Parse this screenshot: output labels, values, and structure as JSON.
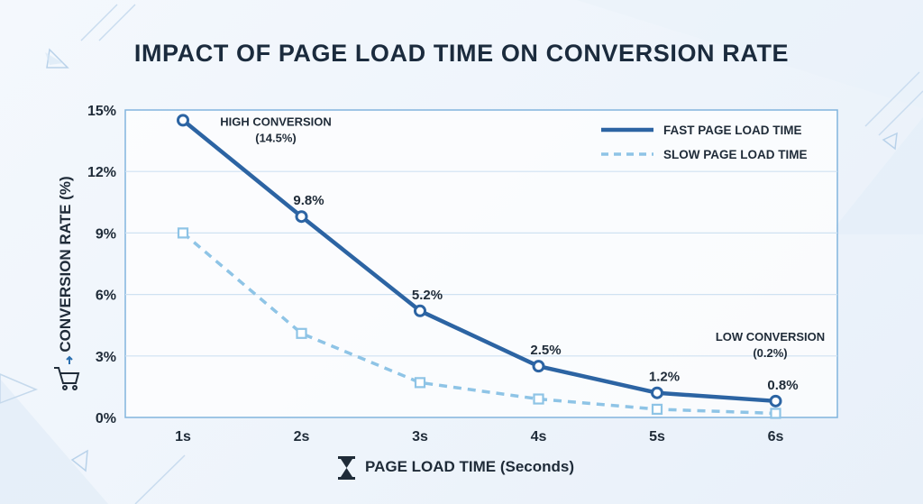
{
  "chart_data": {
    "type": "line",
    "title": "IMPACT OF PAGE LOAD TIME ON CONVERSION RATE",
    "xlabel": "PAGE LOAD TIME (Seconds)",
    "ylabel": "CONVERSION RATE (%)",
    "categories": [
      "1s",
      "2s",
      "3s",
      "4s",
      "5s",
      "6s"
    ],
    "yticks": [
      "0%",
      "3%",
      "6%",
      "9%",
      "12%",
      "15%"
    ],
    "ylim": [
      0,
      15
    ],
    "grid": true,
    "legend_position": "top-right",
    "series": [
      {
        "name": "FAST PAGE LOAD TIME",
        "style": "solid",
        "marker": "circle",
        "color": "#2c64a3",
        "values": [
          14.5,
          9.8,
          5.2,
          2.5,
          1.2,
          0.8
        ],
        "labels": [
          "",
          "9.8%",
          "5.2%",
          "2.5%",
          "1.2%",
          "0.8%"
        ]
      },
      {
        "name": "SLOW PAGE LOAD TIME",
        "style": "dashed",
        "marker": "square",
        "color": "#8ec4e6",
        "values": [
          9.0,
          4.1,
          1.7,
          0.9,
          0.4,
          0.2
        ],
        "labels": []
      }
    ],
    "annotations": [
      {
        "lines": [
          "HIGH CONVERSION",
          "(14.5%)"
        ],
        "target": "1s"
      },
      {
        "lines": [
          "LOW CONVERSION",
          "(0.2%)"
        ],
        "target": "6s"
      }
    ],
    "icons": {
      "ylabel": "cart-icon",
      "xlabel": "hourglass-icon"
    }
  }
}
